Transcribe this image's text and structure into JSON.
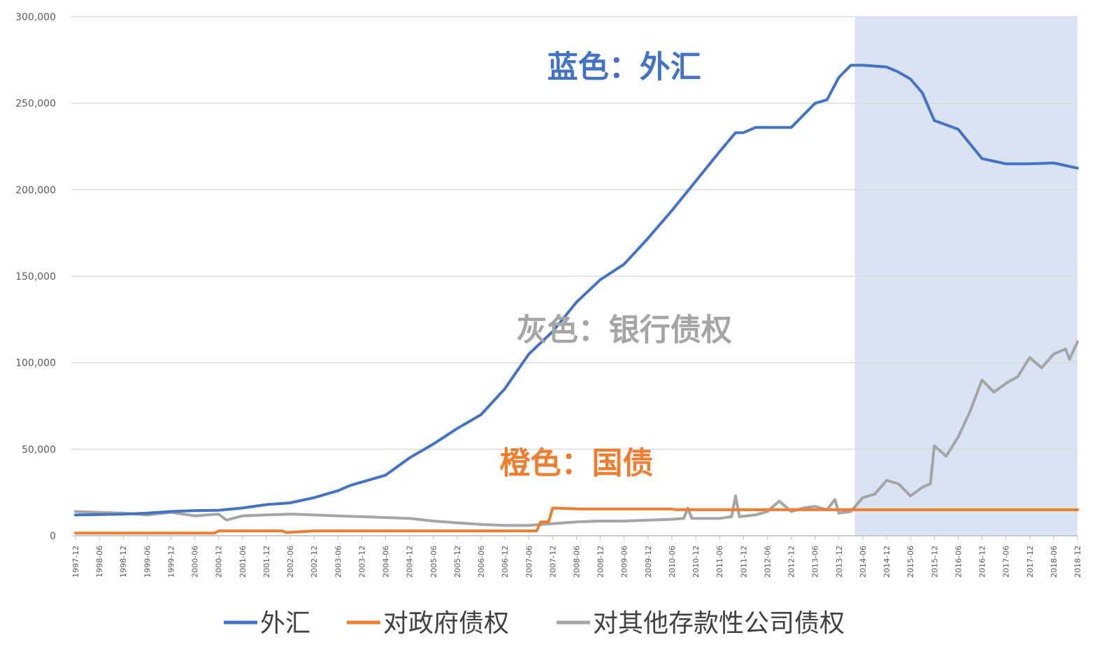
{
  "chart_data": {
    "type": "line",
    "title": "",
    "xlabel": "",
    "ylabel": "",
    "ylim": [
      0,
      300000
    ],
    "yticks": [
      "300,000",
      "250,000",
      "200,000",
      "150,000",
      "100,000",
      "50,000",
      "0"
    ],
    "ytick_values": [
      300000,
      250000,
      200000,
      150000,
      100000,
      50000,
      0
    ],
    "x_tick_labels": [
      "1997-12",
      "1998-06",
      "1998-12",
      "1999-06",
      "1999-12",
      "2000-06",
      "2000-12",
      "2001-06",
      "2001-12",
      "2002-06",
      "2002-12",
      "2003-06",
      "2003-12",
      "2004-06",
      "2004-12",
      "2005-06",
      "2005-12",
      "2006-06",
      "2006-12",
      "2007-06",
      "2007-12",
      "2008-06",
      "2008-12",
      "2009-06",
      "2009-12",
      "2010-06",
      "2010-12",
      "2011-06",
      "2011-12",
      "2012-06",
      "2012-12",
      "2013-06",
      "2013-12",
      "2014-06",
      "2014-12",
      "2015-06",
      "2015-12",
      "2016-06",
      "2016-12",
      "2017-06",
      "2017-12",
      "2018-06",
      "2018-12"
    ],
    "grid": true,
    "legend_position": "bottom",
    "shaded_region": {
      "from": "2014-04",
      "to": "2018-12",
      "color": "#dae3f3"
    },
    "annotations": [
      {
        "text": "蓝色：外汇",
        "color": "#4472c4",
        "anchor_x": "2009-06",
        "anchor_y": 265000
      },
      {
        "text": "灰色：银行债权",
        "color": "#a5a5a5",
        "anchor_x": "2009-06",
        "anchor_y": 113000
      },
      {
        "text": "橙色：国债",
        "color": "#ed7d31",
        "anchor_x": "2008-06",
        "anchor_y": 36000
      }
    ],
    "series": [
      {
        "name": "外汇",
        "color": "#4472c4",
        "points": [
          [
            "1997-12",
            12000
          ],
          [
            "1998-12",
            12500
          ],
          [
            "1999-06",
            13000
          ],
          [
            "1999-12",
            14000
          ],
          [
            "2000-06",
            14500
          ],
          [
            "2000-12",
            14700
          ],
          [
            "2001-06",
            16000
          ],
          [
            "2001-12",
            18000
          ],
          [
            "2002-06",
            19000
          ],
          [
            "2002-12",
            22000
          ],
          [
            "2003-06",
            26000
          ],
          [
            "2003-09",
            29000
          ],
          [
            "2003-12",
            31000
          ],
          [
            "2004-06",
            35000
          ],
          [
            "2004-12",
            45000
          ],
          [
            "2005-06",
            53000
          ],
          [
            "2005-12",
            62000
          ],
          [
            "2006-06",
            70000
          ],
          [
            "2006-12",
            85000
          ],
          [
            "2007-06",
            105000
          ],
          [
            "2007-12",
            118000
          ],
          [
            "2008-06",
            135000
          ],
          [
            "2008-12",
            148000
          ],
          [
            "2009-06",
            157000
          ],
          [
            "2009-12",
            172000
          ],
          [
            "2010-06",
            188000
          ],
          [
            "2010-12",
            205000
          ],
          [
            "2011-06",
            222000
          ],
          [
            "2011-10",
            233000
          ],
          [
            "2011-12",
            233000
          ],
          [
            "2012-03",
            236000
          ],
          [
            "2012-12",
            236000
          ],
          [
            "2013-06",
            250000
          ],
          [
            "2013-09",
            252000
          ],
          [
            "2013-12",
            265000
          ],
          [
            "2014-03",
            272000
          ],
          [
            "2014-06",
            272000
          ],
          [
            "2014-12",
            271000
          ],
          [
            "2015-03",
            268000
          ],
          [
            "2015-06",
            264000
          ],
          [
            "2015-09",
            256000
          ],
          [
            "2015-12",
            240000
          ],
          [
            "2016-06",
            235000
          ],
          [
            "2016-12",
            218000
          ],
          [
            "2017-06",
            215000
          ],
          [
            "2017-12",
            215000
          ],
          [
            "2018-06",
            215500
          ],
          [
            "2018-12",
            212500
          ]
        ]
      },
      {
        "name": "对政府债权",
        "color": "#ed7d31",
        "points": [
          [
            "1997-12",
            1500
          ],
          [
            "2000-11",
            1500
          ],
          [
            "2000-12",
            2800
          ],
          [
            "2002-04",
            2800
          ],
          [
            "2002-05",
            1800
          ],
          [
            "2002-12",
            2800
          ],
          [
            "2007-08",
            2800
          ],
          [
            "2007-09",
            8000
          ],
          [
            "2007-11",
            8000
          ],
          [
            "2007-12",
            16000
          ],
          [
            "2008-07",
            15500
          ],
          [
            "2010-06",
            15500
          ],
          [
            "2010-07",
            15000
          ],
          [
            "2018-12",
            15000
          ]
        ]
      },
      {
        "name": "对其他存款性公司债权",
        "color": "#a5a5a5",
        "points": [
          [
            "1997-12",
            14000
          ],
          [
            "1998-12",
            13000
          ],
          [
            "1999-06",
            12000
          ],
          [
            "1999-12",
            13500
          ],
          [
            "2000-06",
            11500
          ],
          [
            "2000-12",
            12500
          ],
          [
            "2001-02",
            9000
          ],
          [
            "2001-06",
            11500
          ],
          [
            "2001-12",
            12000
          ],
          [
            "2002-06",
            12500
          ],
          [
            "2002-12",
            12000
          ],
          [
            "2003-06",
            11500
          ],
          [
            "2003-12",
            11000
          ],
          [
            "2004-06",
            10500
          ],
          [
            "2004-12",
            10000
          ],
          [
            "2005-06",
            8500
          ],
          [
            "2005-12",
            7500
          ],
          [
            "2006-06",
            6500
          ],
          [
            "2006-12",
            6000
          ],
          [
            "2007-06",
            6000
          ],
          [
            "2007-12",
            7000
          ],
          [
            "2008-06",
            8000
          ],
          [
            "2008-12",
            8500
          ],
          [
            "2009-06",
            8500
          ],
          [
            "2009-12",
            9000
          ],
          [
            "2010-06",
            9500
          ],
          [
            "2010-09",
            10000
          ],
          [
            "2010-10",
            16000
          ],
          [
            "2010-11",
            10000
          ],
          [
            "2011-06",
            10000
          ],
          [
            "2011-09",
            11000
          ],
          [
            "2011-10",
            23000
          ],
          [
            "2011-11",
            11000
          ],
          [
            "2012-03",
            12000
          ],
          [
            "2012-06",
            14000
          ],
          [
            "2012-09",
            20000
          ],
          [
            "2012-12",
            14000
          ],
          [
            "2013-03",
            16000
          ],
          [
            "2013-06",
            17000
          ],
          [
            "2013-09",
            15000
          ],
          [
            "2013-11",
            21000
          ],
          [
            "2013-12",
            13000
          ],
          [
            "2014-03",
            14000
          ],
          [
            "2014-06",
            22000
          ],
          [
            "2014-09",
            24000
          ],
          [
            "2014-12",
            32000
          ],
          [
            "2015-03",
            30000
          ],
          [
            "2015-06",
            23000
          ],
          [
            "2015-09",
            28000
          ],
          [
            "2015-11",
            30000
          ],
          [
            "2015-12",
            52000
          ],
          [
            "2016-03",
            46000
          ],
          [
            "2016-06",
            57000
          ],
          [
            "2016-09",
            72000
          ],
          [
            "2016-12",
            90000
          ],
          [
            "2017-03",
            83000
          ],
          [
            "2017-06",
            88000
          ],
          [
            "2017-09",
            92000
          ],
          [
            "2017-12",
            103000
          ],
          [
            "2018-03",
            97000
          ],
          [
            "2018-06",
            105000
          ],
          [
            "2018-09",
            108000
          ],
          [
            "2018-10",
            102000
          ],
          [
            "2018-12",
            112000
          ]
        ]
      }
    ]
  }
}
